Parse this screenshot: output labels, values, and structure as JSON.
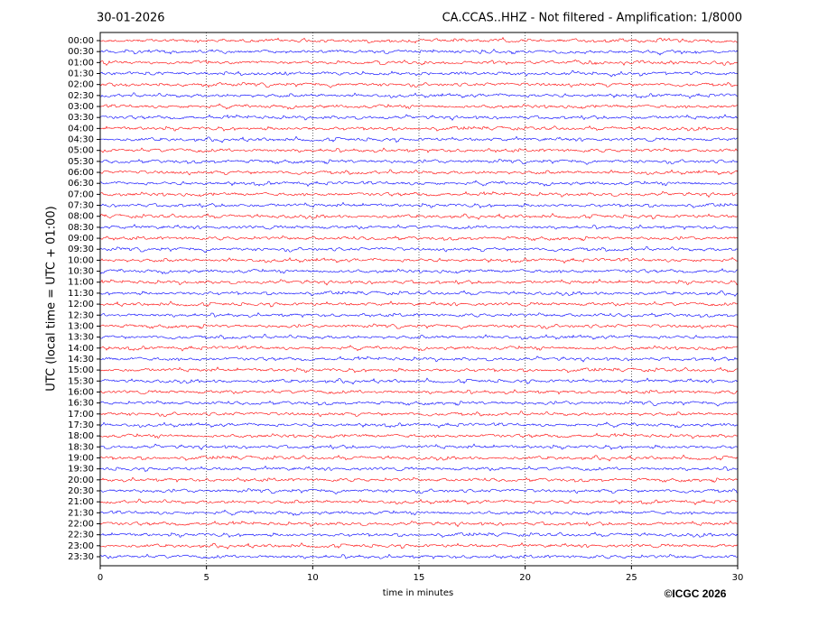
{
  "chart_data": {
    "type": "helicorder",
    "date": "30-01-2026",
    "title": "CA.CCAS..HHZ - Not filtered - Amplification: 1/8000",
    "y_label": "UTC (local time = UTC + 01:00)",
    "x_label": "time in minutes",
    "copyright": "©ICGC 2026",
    "categories": [
      "00:00",
      "00:30",
      "01:00",
      "01:30",
      "02:00",
      "02:30",
      "03:00",
      "03:30",
      "04:00",
      "04:30",
      "05:00",
      "05:30",
      "06:00",
      "06:30",
      "07:00",
      "07:30",
      "08:00",
      "08:30",
      "09:00",
      "09:30",
      "10:00",
      "10:30",
      "11:00",
      "11:30",
      "12:00",
      "12:30",
      "13:00",
      "13:30",
      "14:00",
      "14:30",
      "15:00",
      "15:30",
      "16:00",
      "16:30",
      "17:00",
      "17:30",
      "18:00",
      "18:30",
      "19:00",
      "19:30",
      "20:00",
      "20:30",
      "21:00",
      "21:30",
      "22:00",
      "22:30",
      "23:00",
      "23:30"
    ],
    "trace_colors": [
      "#ff0000",
      "#0000ff"
    ],
    "xlim": [
      0,
      30
    ],
    "xticks": [
      0,
      5,
      10,
      15,
      20,
      25,
      30
    ],
    "grid": true
  }
}
